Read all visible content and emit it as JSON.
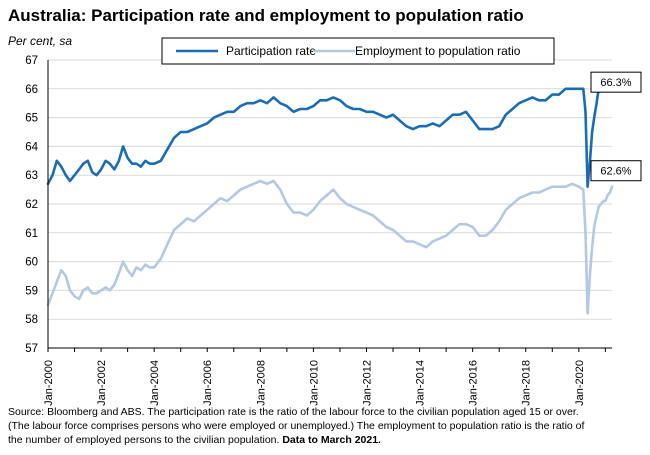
{
  "header": {
    "title": "Australia: Participation rate and employment to population ratio",
    "unit": "Per cent, sa"
  },
  "footer": {
    "line1": "Source: Bloomberg and ABS.  The participation rate is the ratio of the labour force to the civilian population aged 15 or over.",
    "line2": "(The labour force comprises persons who were employed or unemployed.)  The employment to population ratio is the ratio of",
    "line3_main": "the number of employed persons to the civilian population.",
    "line3_bold": "Data to March 2021."
  },
  "chart_data": {
    "type": "line",
    "title": "Australia: Participation rate and employment to population ratio",
    "ylabel": "Per cent, sa",
    "ylim": [
      57,
      67
    ],
    "xlim": [
      2000.0,
      2021.25
    ],
    "y_ticks": [
      "57",
      "58",
      "59",
      "60",
      "61",
      "62",
      "63",
      "64",
      "65",
      "66",
      "67"
    ],
    "x_ticks": [
      "Jan-2000",
      "Jan-2002",
      "Jan-2004",
      "Jan-2006",
      "Jan-2008",
      "Jan-2010",
      "Jan-2012",
      "Jan-2014",
      "Jan-2016",
      "Jan-2018",
      "Jan-2020"
    ],
    "grid": "horizontal",
    "legend": "top-center, boxed",
    "series": [
      {
        "name": "Participation rate",
        "color": "#1a6db5",
        "end_label": "66.3%",
        "x": [
          2000.0,
          2000.17,
          2000.33,
          2000.5,
          2000.67,
          2000.83,
          2001.0,
          2001.17,
          2001.33,
          2001.5,
          2001.67,
          2001.83,
          2002.0,
          2002.17,
          2002.33,
          2002.5,
          2002.67,
          2002.83,
          2003.0,
          2003.17,
          2003.33,
          2003.5,
          2003.67,
          2003.83,
          2004.0,
          2004.25,
          2004.5,
          2004.75,
          2005.0,
          2005.25,
          2005.5,
          2005.75,
          2006.0,
          2006.25,
          2006.5,
          2006.75,
          2007.0,
          2007.25,
          2007.5,
          2007.75,
          2008.0,
          2008.25,
          2008.5,
          2008.75,
          2009.0,
          2009.25,
          2009.5,
          2009.75,
          2010.0,
          2010.25,
          2010.5,
          2010.75,
          2011.0,
          2011.25,
          2011.5,
          2011.75,
          2012.0,
          2012.25,
          2012.5,
          2012.75,
          2013.0,
          2013.25,
          2013.5,
          2013.75,
          2014.0,
          2014.25,
          2014.5,
          2014.75,
          2015.0,
          2015.25,
          2015.5,
          2015.75,
          2016.0,
          2016.25,
          2016.5,
          2016.75,
          2017.0,
          2017.25,
          2017.5,
          2017.75,
          2018.0,
          2018.25,
          2018.5,
          2018.75,
          2019.0,
          2019.25,
          2019.5,
          2019.75,
          2020.0,
          2020.17,
          2020.25,
          2020.33,
          2020.42,
          2020.5,
          2020.58,
          2020.67,
          2020.75,
          2020.83,
          2020.92,
          2021.0,
          2021.08,
          2021.17,
          2021.25
        ],
        "values": [
          62.7,
          63.0,
          63.5,
          63.3,
          63.0,
          62.8,
          63.0,
          63.2,
          63.4,
          63.5,
          63.1,
          63.0,
          63.2,
          63.5,
          63.4,
          63.2,
          63.5,
          64.0,
          63.6,
          63.4,
          63.4,
          63.3,
          63.5,
          63.4,
          63.4,
          63.5,
          63.9,
          64.3,
          64.5,
          64.5,
          64.6,
          64.7,
          64.8,
          65.0,
          65.1,
          65.2,
          65.2,
          65.4,
          65.5,
          65.5,
          65.6,
          65.5,
          65.7,
          65.5,
          65.4,
          65.2,
          65.3,
          65.3,
          65.4,
          65.6,
          65.6,
          65.7,
          65.6,
          65.4,
          65.3,
          65.3,
          65.2,
          65.2,
          65.1,
          65.0,
          65.1,
          64.9,
          64.7,
          64.6,
          64.7,
          64.7,
          64.8,
          64.7,
          64.9,
          65.1,
          65.1,
          65.2,
          64.9,
          64.6,
          64.6,
          64.6,
          64.7,
          65.1,
          65.3,
          65.5,
          65.6,
          65.7,
          65.6,
          65.6,
          65.8,
          65.8,
          66.0,
          66.0,
          66.0,
          66.0,
          65.2,
          62.6,
          63.5,
          64.5,
          65.0,
          65.5,
          66.0,
          66.1,
          66.1,
          66.1,
          66.2,
          66.2,
          66.3
        ]
      },
      {
        "name": "Employment to population ratio",
        "color": "#b4c7e7",
        "end_label": "62.6%",
        "x": [
          2000.0,
          2000.17,
          2000.33,
          2000.5,
          2000.67,
          2000.83,
          2001.0,
          2001.17,
          2001.33,
          2001.5,
          2001.67,
          2001.83,
          2002.0,
          2002.17,
          2002.33,
          2002.5,
          2002.67,
          2002.83,
          2003.0,
          2003.17,
          2003.33,
          2003.5,
          2003.67,
          2003.83,
          2004.0,
          2004.25,
          2004.5,
          2004.75,
          2005.0,
          2005.25,
          2005.5,
          2005.75,
          2006.0,
          2006.25,
          2006.5,
          2006.75,
          2007.0,
          2007.25,
          2007.5,
          2007.75,
          2008.0,
          2008.25,
          2008.5,
          2008.75,
          2009.0,
          2009.25,
          2009.5,
          2009.75,
          2010.0,
          2010.25,
          2010.5,
          2010.75,
          2011.0,
          2011.25,
          2011.5,
          2011.75,
          2012.0,
          2012.25,
          2012.5,
          2012.75,
          2013.0,
          2013.25,
          2013.5,
          2013.75,
          2014.0,
          2014.25,
          2014.5,
          2014.75,
          2015.0,
          2015.25,
          2015.5,
          2015.75,
          2016.0,
          2016.25,
          2016.5,
          2016.75,
          2017.0,
          2017.25,
          2017.5,
          2017.75,
          2018.0,
          2018.25,
          2018.5,
          2018.75,
          2019.0,
          2019.25,
          2019.5,
          2019.75,
          2020.0,
          2020.17,
          2020.25,
          2020.33,
          2020.42,
          2020.5,
          2020.58,
          2020.67,
          2020.75,
          2020.83,
          2020.92,
          2021.0,
          2021.08,
          2021.17,
          2021.25
        ],
        "values": [
          58.5,
          58.9,
          59.3,
          59.7,
          59.5,
          59.0,
          58.8,
          58.7,
          59.0,
          59.1,
          58.9,
          58.9,
          59.0,
          59.1,
          59.0,
          59.2,
          59.6,
          60.0,
          59.7,
          59.5,
          59.8,
          59.7,
          59.9,
          59.8,
          59.8,
          60.1,
          60.6,
          61.1,
          61.3,
          61.5,
          61.4,
          61.6,
          61.8,
          62.0,
          62.2,
          62.1,
          62.3,
          62.5,
          62.6,
          62.7,
          62.8,
          62.7,
          62.8,
          62.5,
          62.0,
          61.7,
          61.7,
          61.6,
          61.8,
          62.1,
          62.3,
          62.5,
          62.2,
          62.0,
          61.9,
          61.8,
          61.7,
          61.6,
          61.4,
          61.2,
          61.1,
          60.9,
          60.7,
          60.7,
          60.6,
          60.5,
          60.7,
          60.8,
          60.9,
          61.1,
          61.3,
          61.3,
          61.2,
          60.9,
          60.9,
          61.1,
          61.4,
          61.8,
          62.0,
          62.2,
          62.3,
          62.4,
          62.4,
          62.5,
          62.6,
          62.6,
          62.6,
          62.7,
          62.6,
          62.5,
          61.0,
          58.2,
          59.6,
          60.5,
          61.2,
          61.6,
          61.9,
          62.0,
          62.1,
          62.1,
          62.3,
          62.4,
          62.6
        ]
      }
    ]
  }
}
